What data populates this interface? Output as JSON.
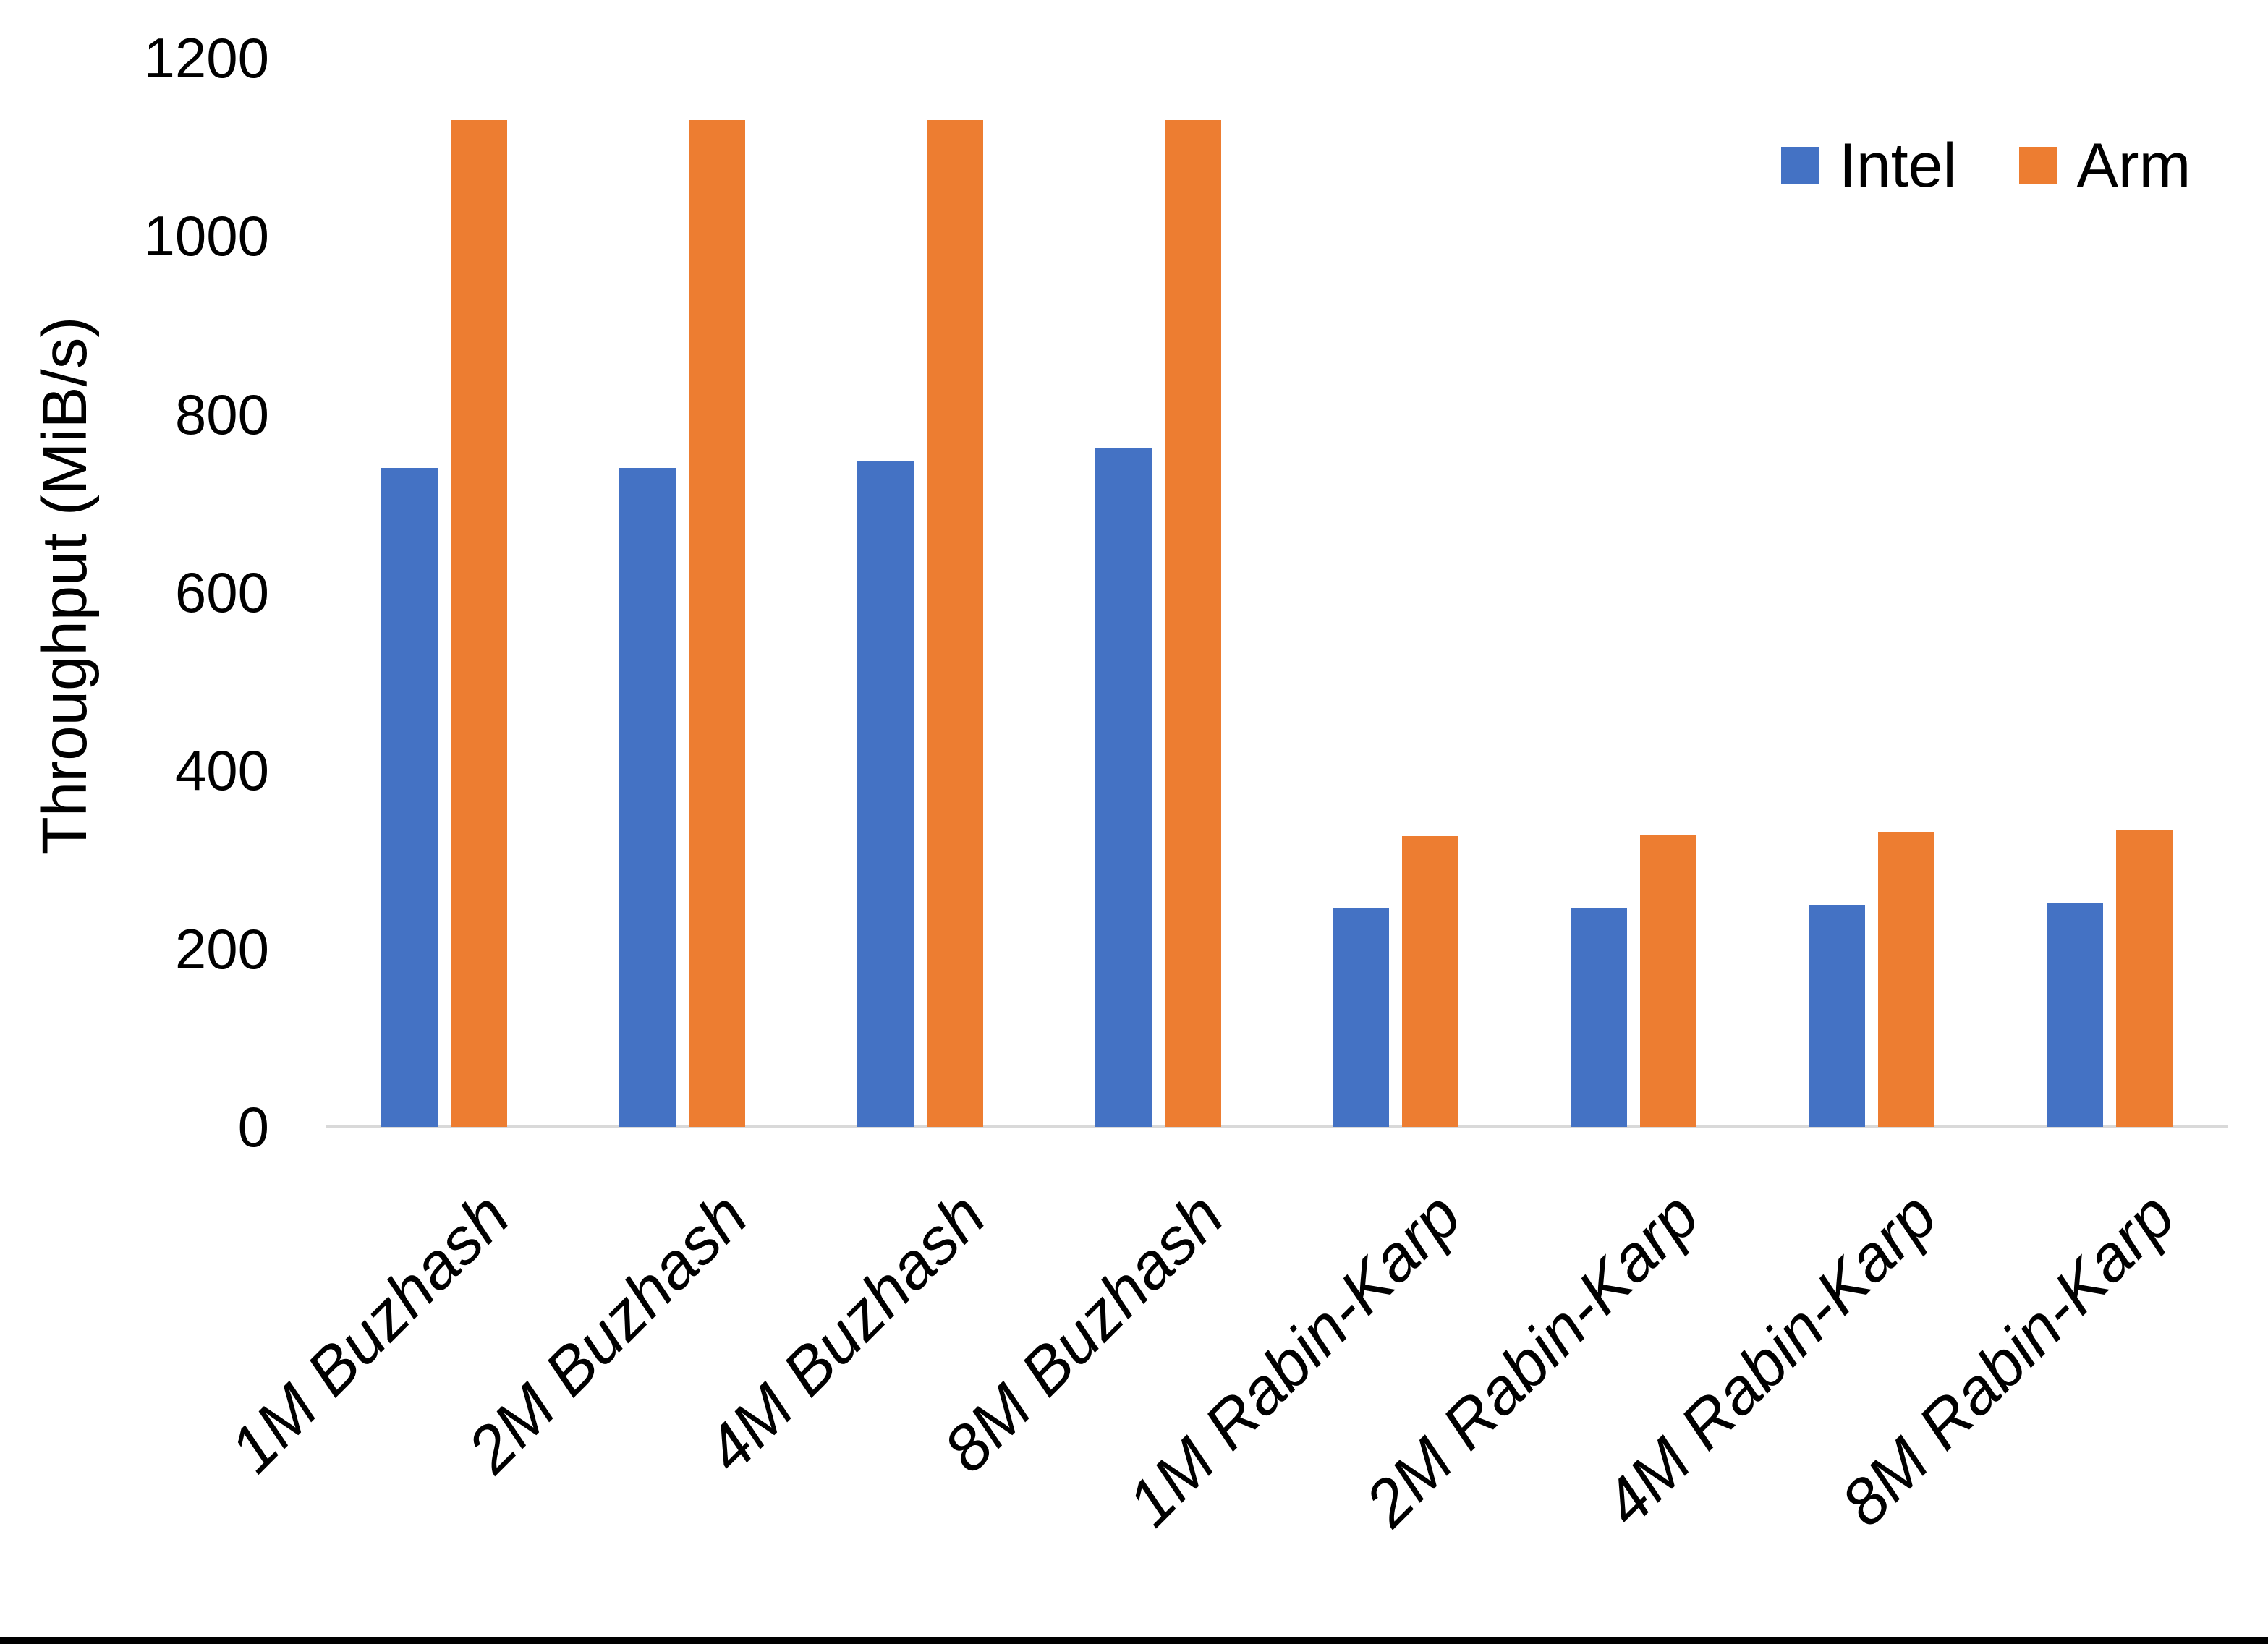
{
  "chart_data": {
    "type": "bar",
    "title": "",
    "ylabel": "Throughput (MiB/s)",
    "xlabel": "",
    "ylim": [
      0,
      1200
    ],
    "ytick_step": 200,
    "yticks": [
      "0",
      "200",
      "400",
      "600",
      "800",
      "1000",
      "1200"
    ],
    "grid": false,
    "legend_position": "top-right",
    "categories": [
      "1M Buzhash",
      "2M Buzhash",
      "4M Buzhash",
      "8M Buzhash",
      "1M Rabin-Karp",
      "2M Rabin-Karp",
      "4M Rabin-Karp",
      "8M Rabin-Karp"
    ],
    "series": [
      {
        "name": "Intel",
        "color": "#4472C4",
        "values": [
          740,
          740,
          748,
          762,
          245,
          245,
          249,
          251
        ]
      },
      {
        "name": "Arm",
        "color": "#ED7D31",
        "values": [
          1130,
          1130,
          1130,
          1130,
          326,
          328,
          331,
          334
        ]
      }
    ]
  },
  "colors": {
    "axis_line": "#d9d9d9",
    "text": "#000000",
    "background": "#ffffff",
    "bottom_border": "#000000"
  }
}
